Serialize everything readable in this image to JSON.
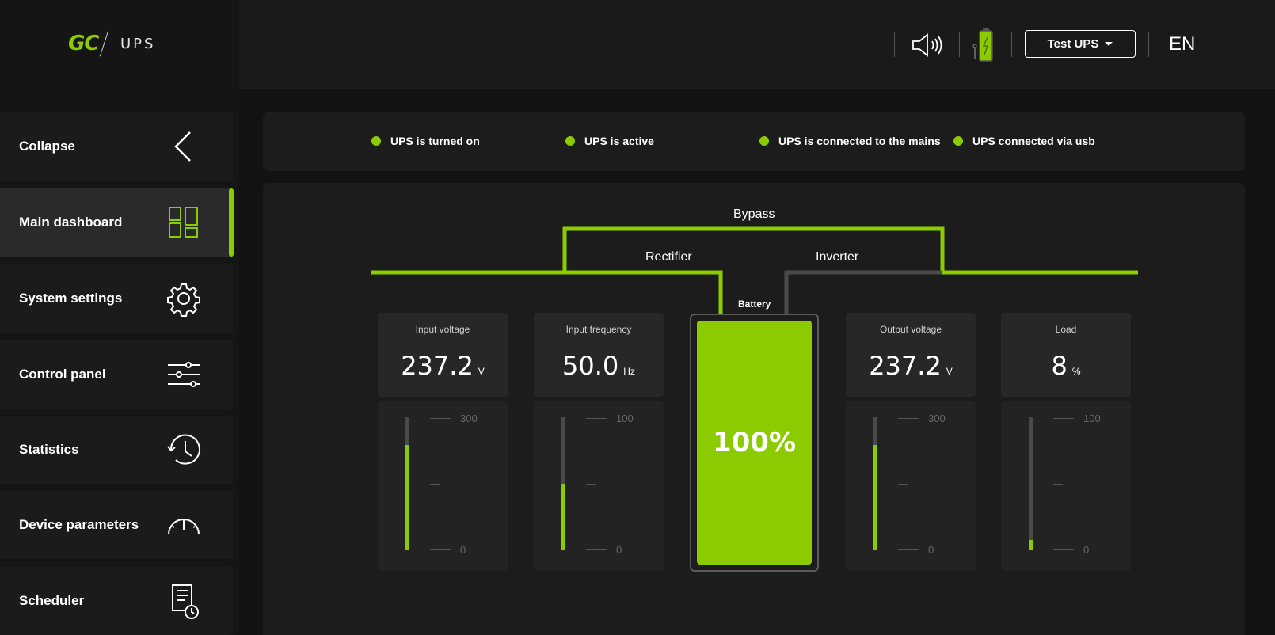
{
  "brand": {
    "logo_mark": "GC",
    "product": "UPS"
  },
  "sidebar": {
    "items": [
      {
        "label": "Collapse",
        "icon": "chevron-left-icon"
      },
      {
        "label": "Main dashboard",
        "icon": "dashboard-grid-icon",
        "active": true
      },
      {
        "label": "System settings",
        "icon": "gear-icon"
      },
      {
        "label": "Control panel",
        "icon": "sliders-icon"
      },
      {
        "label": "Statistics",
        "icon": "history-clock-icon"
      },
      {
        "label": "Device parameters",
        "icon": "gauge-icon"
      },
      {
        "label": "Scheduler",
        "icon": "document-clock-icon"
      }
    ]
  },
  "header": {
    "sound_icon": "speaker-icon",
    "battery_icon": "battery-charging-icon",
    "device_select": "Test UPS",
    "language": "EN"
  },
  "status": [
    "UPS is turned on",
    "UPS is active",
    "UPS is connected to the mains",
    "UPS connected via usb"
  ],
  "flow": {
    "bypass": "Bypass",
    "rectifier": "Rectifier",
    "inverter": "Inverter",
    "battery": "Battery"
  },
  "cards": [
    {
      "title": "Input voltage",
      "value": "237.2",
      "unit": "V",
      "max": "300",
      "mid": "",
      "min": "0",
      "fill": 0.79
    },
    {
      "title": "Input frequency",
      "value": "50.0",
      "unit": "Hz",
      "max": "100",
      "mid": "",
      "min": "0",
      "fill": 0.5
    },
    {
      "title": "Output voltage",
      "value": "237.2",
      "unit": "V",
      "max": "300",
      "mid": "",
      "min": "0",
      "fill": 0.79
    },
    {
      "title": "Load",
      "value": "8",
      "unit": "%",
      "max": "100",
      "mid": "",
      "min": "0",
      "fill": 0.08
    }
  ],
  "battery_level": "100%",
  "colors": {
    "accent": "#8ccb00",
    "background": "#121212",
    "panel": "#1c1c1c"
  }
}
